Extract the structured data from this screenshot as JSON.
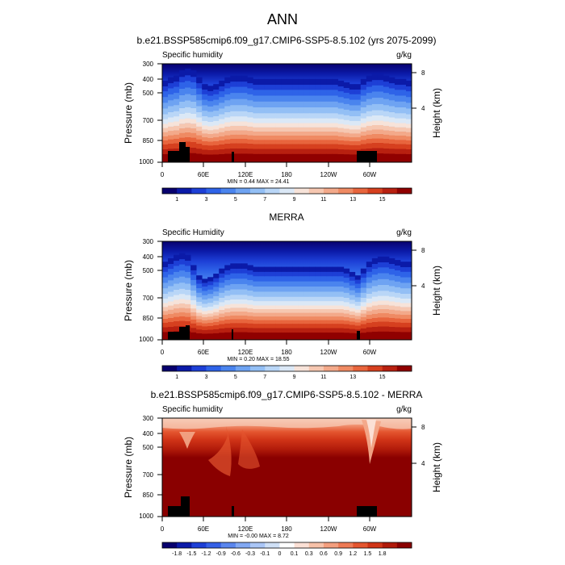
{
  "figure": {
    "title": "ANN"
  },
  "colors": {
    "abs_scale": [
      "#08006e",
      "#0b1aa8",
      "#1d3fd6",
      "#2e63e8",
      "#4a84ee",
      "#6ea3f2",
      "#93bff5",
      "#b9d6f7",
      "#dbe8f6",
      "#f7e3d9",
      "#f6c7b1",
      "#f3a98a",
      "#ef8a63",
      "#e8653d",
      "#d6401f",
      "#b82010",
      "#900000"
    ],
    "diff_scale": [
      "#08006e",
      "#0b1aa8",
      "#1d3fd6",
      "#3560e6",
      "#5a86ee",
      "#82a8f3",
      "#aac6f6",
      "#cfe0f6",
      "#ffffff",
      "#fbe0d5",
      "#f7c1a8",
      "#f39e7e",
      "#ee7a55",
      "#e4552f",
      "#d03417",
      "#b01a0a",
      "#8a0000"
    ],
    "topography": "#000000"
  },
  "chart_data": [
    {
      "type": "heatmap",
      "title": "b.e21.BSSP585cmip6.f09_g17.CMIP6-SSP5-8.5.102 (yrs 2075-2099)",
      "subtitle_left": "Specific humidity",
      "subtitle_right": "g/kg",
      "ylabel": "Pressure (mb)",
      "ylabel_right": "Height (km)",
      "x_ticks": [
        "0",
        "60E",
        "120E",
        "180",
        "120W",
        "60W"
      ],
      "y_ticks": [
        "300",
        "400",
        "500",
        "700",
        "850",
        "1000"
      ],
      "y_ticks_right": [
        "8",
        "4"
      ],
      "min_max": "MIN =    0.44  MAX =  24.41",
      "colorbar_labels": [
        "1",
        "3",
        "5",
        "7",
        "9",
        "11",
        "13",
        "15"
      ],
      "surface_humidity_profile": [
        14,
        15,
        15.5,
        17,
        17.5,
        17,
        15,
        13,
        12.5,
        13,
        14,
        15,
        15.5,
        15.5,
        15.5,
        15,
        14.5,
        14.5,
        14.5,
        14.5,
        14.5,
        14.5,
        14.5,
        14.5,
        14.5,
        14.5,
        14.5,
        14.5,
        14.5,
        14.5,
        14.5,
        14,
        13.5,
        13,
        13,
        14.5,
        15.5,
        16,
        16,
        15.5,
        15,
        14.5,
        14.5,
        14
      ]
    },
    {
      "type": "heatmap",
      "title": "MERRA",
      "subtitle_left": "Specific Humidity",
      "subtitle_right": "g/kg",
      "ylabel": "Pressure (mb)",
      "ylabel_right": "Height (km)",
      "x_ticks": [
        "0",
        "60E",
        "120E",
        "180",
        "120W",
        "60W"
      ],
      "y_ticks": [
        "300",
        "400",
        "500",
        "700",
        "850",
        "1000"
      ],
      "y_ticks_right": [
        "8",
        "4"
      ],
      "min_max": "MIN =    0.20  MAX =  18.55",
      "colorbar_labels": [
        "1",
        "3",
        "5",
        "7",
        "9",
        "11",
        "13",
        "15"
      ],
      "surface_humidity_profile": [
        13,
        14,
        15,
        15.5,
        15,
        12,
        9,
        8,
        8.5,
        9.5,
        11,
        12,
        12.5,
        12.5,
        12.5,
        12,
        11.5,
        11.5,
        11.5,
        11.5,
        11.5,
        11.5,
        11.5,
        11.5,
        11.5,
        11.5,
        11.5,
        11.5,
        11.5,
        11.5,
        11.5,
        11.5,
        11,
        10,
        9,
        11,
        13,
        14,
        14.5,
        14.5,
        14,
        13.5,
        13,
        13
      ]
    },
    {
      "type": "heatmap",
      "title": "b.e21.BSSP585cmip6.f09_g17.CMIP6-SSP5-8.5.102 - MERRA",
      "subtitle_left": "Specific humidity",
      "subtitle_right": "g/kg",
      "ylabel": "Pressure (mb)",
      "ylabel_right": "Height (km)",
      "x_ticks": [
        "0",
        "60E",
        "120E",
        "180",
        "120W",
        "60W"
      ],
      "y_ticks": [
        "300",
        "400",
        "500",
        "700",
        "850",
        "1000"
      ],
      "y_ticks_right": [
        "8",
        "4"
      ],
      "min_max": "MIN =   -0.00  MAX =    8.72",
      "colorbar_labels": [
        "-1.8",
        "-1.5",
        "-1.2",
        "-0.9",
        "-0.6",
        "-0.3",
        "-0.1",
        "0",
        "0.1",
        "0.3",
        "0.6",
        "0.9",
        "1.2",
        "1.5",
        "1.8"
      ]
    }
  ]
}
